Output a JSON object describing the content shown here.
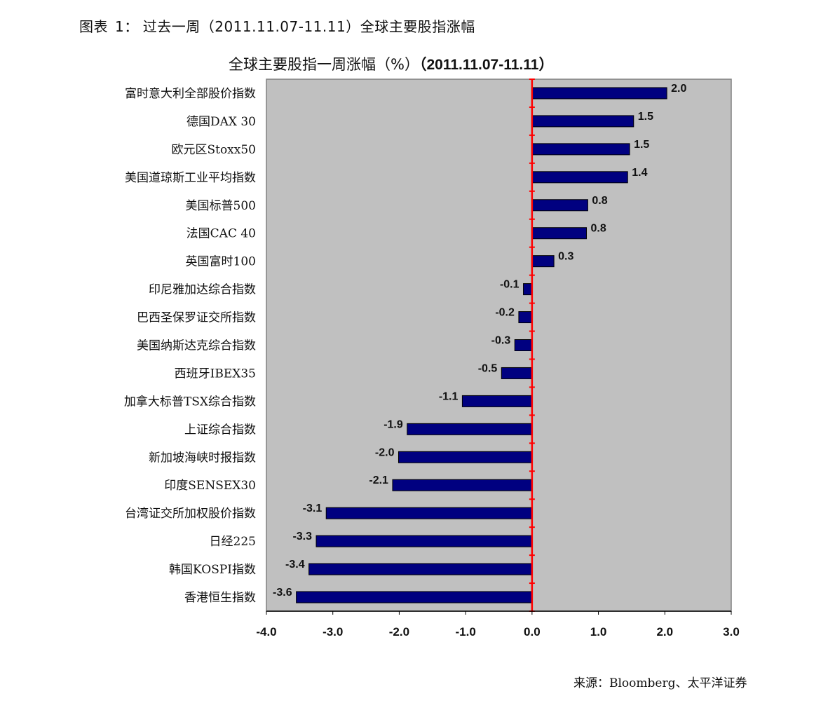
{
  "caption": {
    "prefix": "图表",
    "number": "1：",
    "text": "过去一周（2011.11.07-11.11）全球主要股指涨幅"
  },
  "source": "来源：Bloomberg、太平洋证券",
  "colors": {
    "plot_bg": "#c0c0c0",
    "bar_fill": "#000080",
    "zero_line": "#ff0000",
    "axis": "#000000"
  },
  "chart_data": {
    "type": "bar",
    "orientation": "horizontal",
    "title": "全球主要股指一周涨幅（%）",
    "title_period": "（2011.11.07-11.11）",
    "categories": [
      "富时意大利全部股价指数",
      "德国DAX 30",
      "欧元区Stoxx50",
      "美国道琼斯工业平均指数",
      "美国标普500",
      "法国CAC 40",
      "英国富时100",
      "印尼雅加达综合指数",
      "巴西圣保罗证交所指数",
      "美国纳斯达克综合指数",
      "西班牙IBEX35",
      "加拿大标普TSX综合指数",
      "上证综合指数",
      "新加坡海峡时报指数",
      "印度SENSEX30",
      "台湾证交所加权股价指数",
      "日经225",
      "韩国KOSPI指数",
      "香港恒生指数"
    ],
    "values": [
      2.03,
      1.53,
      1.47,
      1.44,
      0.84,
      0.82,
      0.33,
      -0.13,
      -0.2,
      -0.26,
      -0.46,
      -1.05,
      -1.88,
      -2.01,
      -2.1,
      -3.1,
      -3.25,
      -3.36,
      -3.55
    ],
    "value_labels": [
      "2.0",
      "1.5",
      "1.5",
      "1.4",
      "0.8",
      "0.8",
      "0.3",
      "-0.1",
      "-0.2",
      "-0.3",
      "-0.5",
      "-1.1",
      "-1.9",
      "-2.0",
      "-2.1",
      "-3.1",
      "-3.3",
      "-3.4",
      "-3.6"
    ],
    "xlim": [
      -4.0,
      3.0
    ],
    "xticks": [
      "-4.0",
      "-3.0",
      "-2.0",
      "-1.0",
      "0.0",
      "1.0",
      "2.0",
      "3.0"
    ],
    "grid": false,
    "legend": "none"
  }
}
